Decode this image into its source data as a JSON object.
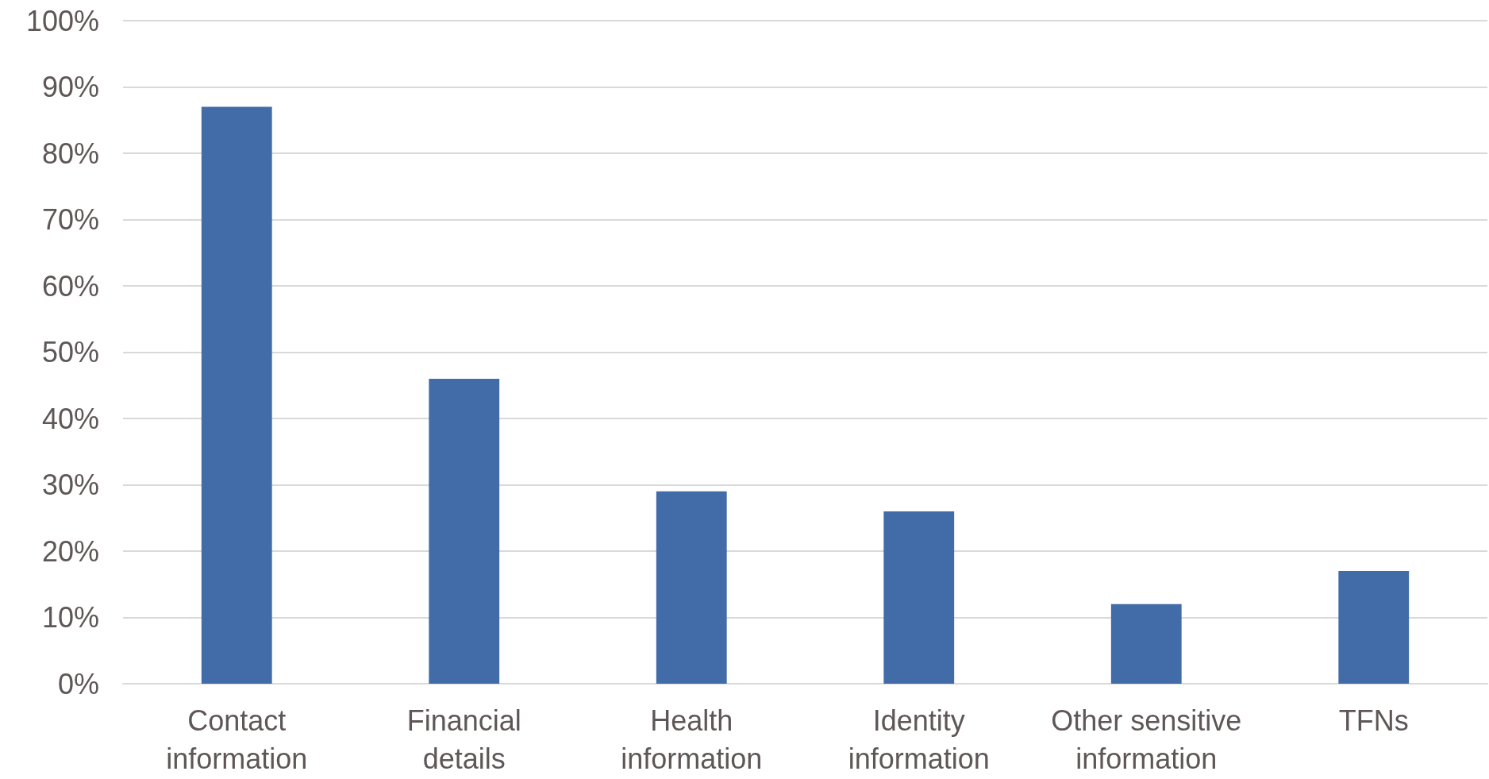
{
  "chart_data": {
    "type": "bar",
    "categories": [
      "Contact information",
      "Financial details",
      "Health information",
      "Identity information",
      "Other sensitive information",
      "TFNs"
    ],
    "values": [
      87,
      46,
      29,
      26,
      12,
      17
    ],
    "color": "#416ca8",
    "ylim": [
      0,
      100
    ],
    "yticks": [
      {
        "value": 0,
        "label": "0%"
      },
      {
        "value": 10,
        "label": "10%"
      },
      {
        "value": 20,
        "label": "20%"
      },
      {
        "value": 30,
        "label": "30%"
      },
      {
        "value": 40,
        "label": "40%"
      },
      {
        "value": 50,
        "label": "50%"
      },
      {
        "value": 60,
        "label": "60%"
      },
      {
        "value": 70,
        "label": "70%"
      },
      {
        "value": 80,
        "label": "80%"
      },
      {
        "value": 90,
        "label": "90%"
      },
      {
        "value": 100,
        "label": "100%"
      }
    ],
    "grid": "y"
  }
}
